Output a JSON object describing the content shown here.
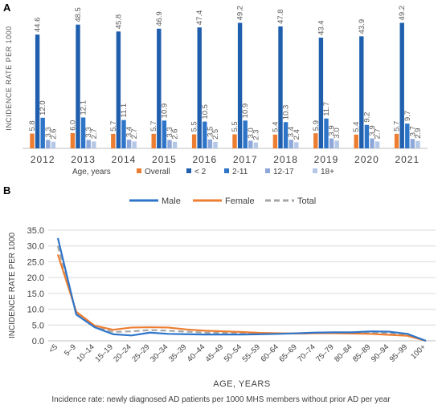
{
  "colors": {
    "overall": "#ED7D31",
    "lt2": "#1F5FAE",
    "age2_11": "#2E75C9",
    "age12_17": "#8FA8DA",
    "age18p": "#B4C7E7",
    "male": "#2E75C9",
    "female": "#ED7D31",
    "total": "#A6A6A6",
    "axis": "#BFBFBF",
    "grid": "#D9D9D9",
    "text": "#595959"
  },
  "chart_data": [
    {
      "type": "bar",
      "panel_label": "A",
      "ylabel": "INCIDENCE RATE PER 1000",
      "xlabel": "",
      "legend_title": "Age, years",
      "legend_position": "bottom",
      "grid": false,
      "ylim": [
        0,
        55
      ],
      "categories": [
        "2012",
        "2013",
        "2014",
        "2015",
        "2016",
        "2017",
        "2018",
        "2019",
        "2020",
        "2021"
      ],
      "series": [
        {
          "name": "Overall",
          "color_key": "overall",
          "values": [
            5.8,
            6.0,
            5.7,
            5.7,
            5.5,
            5.5,
            5.4,
            5.9,
            5.4,
            5.7
          ]
        },
        {
          "name": "< 2",
          "color_key": "lt2",
          "values": [
            44.6,
            48.5,
            45.8,
            46.9,
            47.4,
            49.2,
            47.8,
            43.4,
            43.9,
            49.2
          ]
        },
        {
          "name": "2-11",
          "color_key": "age2_11",
          "values": [
            12.0,
            12.1,
            11.1,
            10.9,
            10.5,
            10.9,
            10.3,
            11.7,
            9.2,
            9.7
          ]
        },
        {
          "name": "12-17",
          "color_key": "age12_17",
          "values": [
            3.3,
            3.3,
            3.4,
            3.3,
            3.5,
            3.0,
            3.4,
            3.9,
            3.9,
            3.7
          ]
        },
        {
          "name": "18+",
          "color_key": "age18p",
          "values": [
            2.6,
            2.7,
            2.7,
            2.6,
            2.5,
            2.3,
            2.4,
            3.0,
            2.7,
            2.9
          ]
        }
      ]
    },
    {
      "type": "line",
      "panel_label": "B",
      "ylabel": "INCIDENCE RATE PER 1000",
      "xlabel": "AGE, YEARS",
      "legend_position": "top",
      "grid": true,
      "ylim": [
        0,
        35
      ],
      "yticks": [
        "0.0",
        "5.0",
        "10.0",
        "15.0",
        "20.0",
        "25.0",
        "30.0",
        "35.0"
      ],
      "categories": [
        "<5",
        "5–9",
        "10–14",
        "15–19",
        "20–24",
        "25–29",
        "30–34",
        "35–39",
        "40–44",
        "45–49",
        "50–54",
        "55–59",
        "60–64",
        "65–69",
        "70–74",
        "75–79",
        "80–84",
        "85–89",
        "90–94",
        "95–99",
        "100+"
      ],
      "series": [
        {
          "name": "Male",
          "color_key": "male",
          "dash": false,
          "values": [
            32.5,
            8.3,
            4.3,
            2.1,
            1.7,
            2.6,
            2.2,
            2.1,
            2.0,
            2.0,
            2.0,
            2.1,
            2.2,
            2.4,
            2.6,
            2.7,
            2.7,
            3.0,
            2.9,
            2.2,
            0.0
          ]
        },
        {
          "name": "Female",
          "color_key": "female",
          "dash": false,
          "values": [
            27.3,
            9.2,
            4.8,
            3.5,
            4.2,
            4.3,
            4.2,
            3.6,
            3.2,
            3.0,
            2.8,
            2.5,
            2.4,
            2.3,
            2.4,
            2.4,
            2.3,
            2.2,
            1.9,
            1.6,
            0.0
          ]
        },
        {
          "name": "Total",
          "color_key": "total",
          "dash": true,
          "values": [
            30.0,
            8.8,
            4.5,
            2.8,
            3.0,
            3.4,
            3.2,
            2.9,
            2.6,
            2.5,
            2.4,
            2.3,
            2.3,
            2.3,
            2.5,
            2.5,
            2.5,
            2.6,
            2.4,
            1.9,
            0.0
          ]
        }
      ]
    }
  ],
  "footnote": "Incidence rate: newly diagnosed AD patients per 1000 MHS members without prior AD per year"
}
